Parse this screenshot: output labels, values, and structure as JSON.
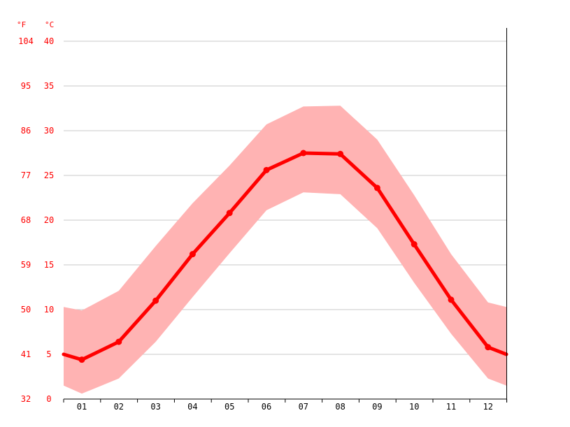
{
  "chart_data": {
    "type": "line",
    "title": "",
    "xlabel": "",
    "ylabel": "",
    "units": {
      "fahrenheit": "°F",
      "celsius": "°C"
    },
    "categories": [
      "01",
      "02",
      "03",
      "04",
      "05",
      "06",
      "07",
      "08",
      "09",
      "10",
      "11",
      "12"
    ],
    "yticks_c": [
      0,
      5,
      10,
      15,
      20,
      25,
      30,
      35,
      40
    ],
    "yticks_f": [
      32,
      41,
      50,
      59,
      68,
      77,
      86,
      95,
      104
    ],
    "ylim": [
      0,
      40
    ],
    "grid": true,
    "edge_values": {
      "mean_start": 5.0,
      "mean_end": 5.0,
      "min_start": 1.5,
      "min_end": 1.5,
      "max_start": 10.3,
      "max_end": 10.3
    },
    "series": [
      {
        "values": [
          4.4,
          6.4,
          11.0,
          16.2,
          20.8,
          25.6,
          27.5,
          27.4,
          23.6,
          17.3,
          11.1,
          5.8
        ]
      },
      {
        "values": [
          0.6,
          2.3,
          6.4,
          11.4,
          16.3,
          21.1,
          23.1,
          22.9,
          19.1,
          13.0,
          7.3,
          2.3
        ]
      },
      {
        "values": [
          9.9,
          12.1,
          17.1,
          21.9,
          26.1,
          30.7,
          32.7,
          32.8,
          29.0,
          22.8,
          16.2,
          10.8
        ]
      }
    ],
    "colors": {
      "mean_line": "#ff0000",
      "range_band": "#ffb3b3",
      "grid": "#c8c8c8",
      "axis": "#000000"
    }
  }
}
